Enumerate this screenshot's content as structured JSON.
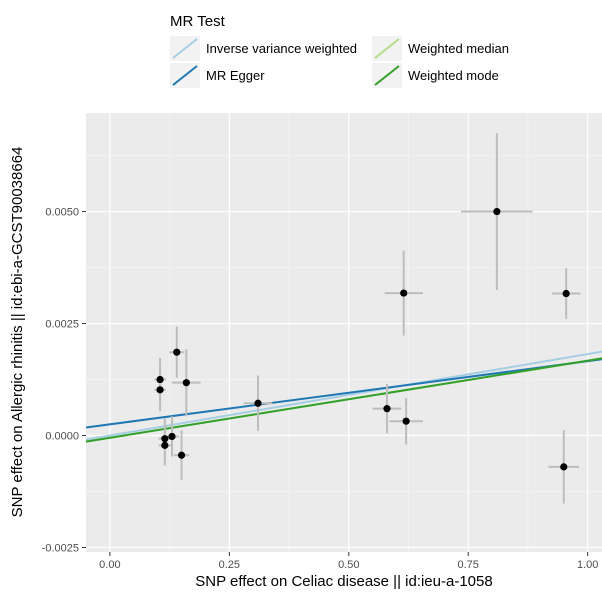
{
  "chart_data": {
    "type": "scatter",
    "xlabel": "SNP effect on Celiac disease || id:ieu-a-1058",
    "ylabel": "SNP effect on Allergic rhinitis || id:ebi-a-GCST90038664",
    "xlim": [
      -0.05,
      1.03
    ],
    "ylim": [
      -0.0026,
      0.0072
    ],
    "x_ticks": [
      0.0,
      0.25,
      0.5,
      0.75,
      1.0
    ],
    "x_tick_labels": [
      "0.00",
      "0.25",
      "0.50",
      "0.75",
      "1.00"
    ],
    "y_ticks": [
      -0.0025,
      0.0,
      0.0025,
      0.005
    ],
    "y_tick_labels": [
      "-0.0025",
      "0.0000",
      "0.0025",
      "0.0050"
    ],
    "grid": true,
    "legend": {
      "title": "MR Test",
      "placement": "top",
      "entries": [
        {
          "label": "Inverse variance weighted",
          "color": "#a6cee3"
        },
        {
          "label": "Weighted median",
          "color": "#b2df8a"
        },
        {
          "label": "MR Egger",
          "color": "#1f78b4"
        },
        {
          "label": "Weighted mode",
          "color": "#33a02c"
        }
      ]
    },
    "lines": [
      {
        "name": "Inverse variance weighted",
        "color": "#a6cee3",
        "intercept": 0.0,
        "slope": 0.00182
      },
      {
        "name": "Weighted median",
        "color": "#b2df8a",
        "intercept": -5e-05,
        "slope": 0.00172
      },
      {
        "name": "MR Egger",
        "color": "#1f78b4",
        "intercept": 0.00025,
        "slope": 0.00141
      },
      {
        "name": "Weighted mode",
        "color": "#33a02c",
        "intercept": -5e-05,
        "slope": 0.00172
      }
    ],
    "points": [
      {
        "x": 0.105,
        "y": 0.00125,
        "xerr": 0.012,
        "yerr": 0.00048
      },
      {
        "x": 0.105,
        "y": 0.00102,
        "xerr": 0.012,
        "yerr": 0.00048
      },
      {
        "x": 0.115,
        "y": -7e-05,
        "xerr": 0.013,
        "yerr": 0.00045
      },
      {
        "x": 0.115,
        "y": -0.00022,
        "xerr": 0.013,
        "yerr": 0.00045
      },
      {
        "x": 0.13,
        "y": -2e-05,
        "xerr": 0.015,
        "yerr": 0.00045
      },
      {
        "x": 0.14,
        "y": 0.00186,
        "xerr": 0.016,
        "yerr": 0.00057
      },
      {
        "x": 0.15,
        "y": -0.00044,
        "xerr": 0.016,
        "yerr": 0.00055
      },
      {
        "x": 0.16,
        "y": 0.00118,
        "xerr": 0.03,
        "yerr": 0.00075
      },
      {
        "x": 0.31,
        "y": 0.00072,
        "xerr": 0.03,
        "yerr": 0.00062
      },
      {
        "x": 0.58,
        "y": 0.0006,
        "xerr": 0.03,
        "yerr": 0.00055
      },
      {
        "x": 0.615,
        "y": 0.00318,
        "xerr": 0.04,
        "yerr": 0.00095
      },
      {
        "x": 0.62,
        "y": 0.00032,
        "xerr": 0.035,
        "yerr": 0.00052
      },
      {
        "x": 0.81,
        "y": 0.005,
        "xerr": 0.075,
        "yerr": 0.00175
      },
      {
        "x": 0.95,
        "y": -0.0007,
        "xerr": 0.032,
        "yerr": 0.00082
      },
      {
        "x": 0.955,
        "y": 0.00317,
        "xerr": 0.03,
        "yerr": 0.00057
      }
    ]
  }
}
